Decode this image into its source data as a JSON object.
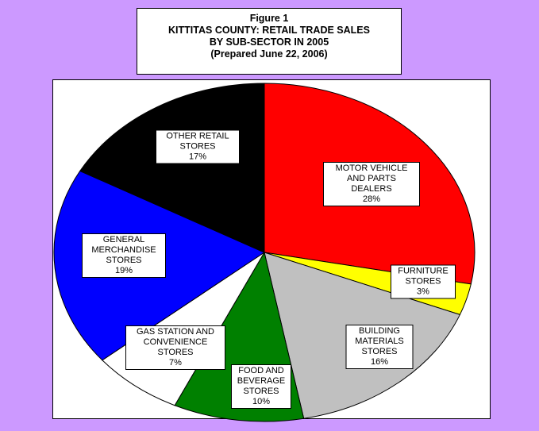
{
  "chart_data": {
    "type": "pie",
    "title": [
      "Figure 1",
      "KITTITAS COUNTY: RETAIL TRADE SALES",
      "BY SUB-SECTOR IN 2005",
      "(Prepared June 22, 2006)"
    ],
    "categories": [
      "MOTOR VEHICLE AND PARTS DEALERS",
      "FURNITURE STORES",
      "BUILDING MATERIALS STORES",
      "FOOD AND BEVERAGE STORES",
      "GAS STATION AND CONVENIENCE STORES",
      "GENERAL MERCHANDISE STORES",
      "OTHER RETAIL STORES"
    ],
    "values": [
      28,
      3,
      16,
      10,
      7,
      19,
      17
    ],
    "value_labels": [
      "28%",
      "3%",
      "16%",
      "10%",
      "7%",
      "19%",
      "17%"
    ],
    "colors": [
      "#ff0000",
      "#ffff00",
      "#c0c0c0",
      "#008000",
      "#ffffff",
      "#0000ff",
      "#000000"
    ]
  }
}
